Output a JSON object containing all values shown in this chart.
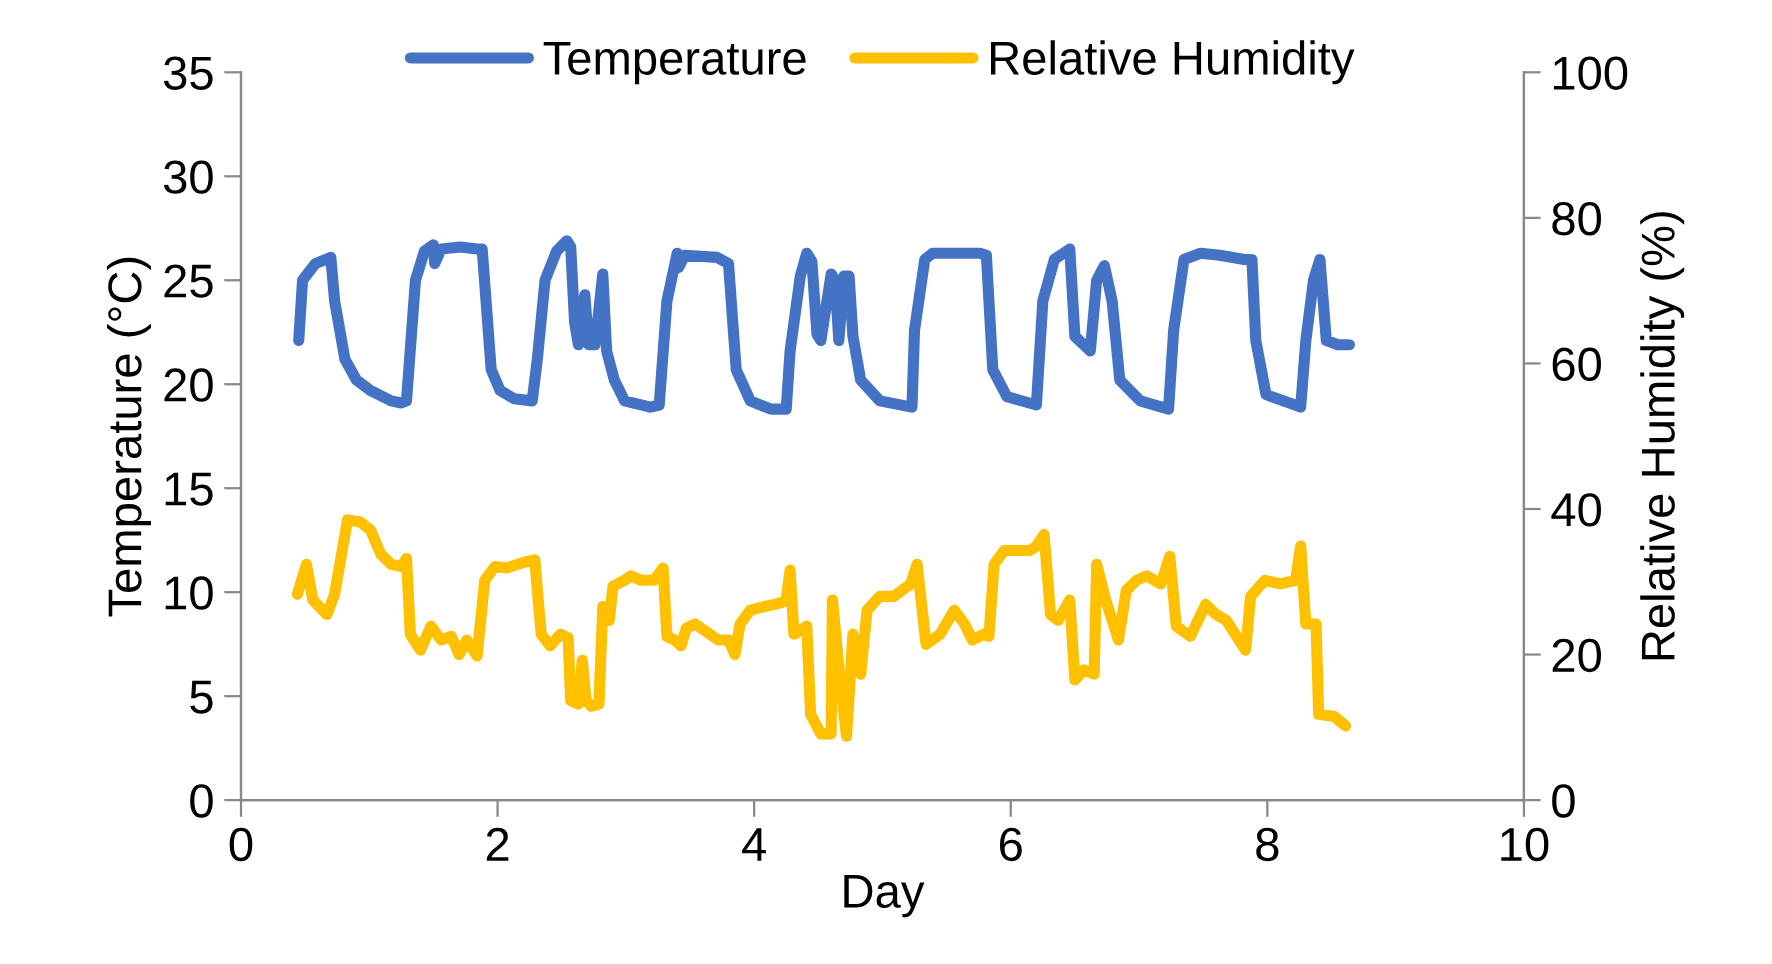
{
  "chart_data": {
    "type": "line",
    "xlabel": "Day",
    "ylabel": "Temperature (°C)",
    "y2label": "Relative Humidity (%)",
    "xlim": [
      0,
      10
    ],
    "xticks": [
      0,
      2,
      4,
      6,
      8,
      10
    ],
    "ylim": [
      0,
      35
    ],
    "yticks": [
      0,
      5,
      10,
      15,
      20,
      25,
      30,
      35
    ],
    "y2lim": [
      0,
      100
    ],
    "y2ticks": [
      0,
      20,
      40,
      60,
      80,
      100
    ],
    "grid": false,
    "legend": "top",
    "marker": "none",
    "line_style": "solid",
    "series": [
      {
        "name": "Temperature",
        "color": "#4472c4",
        "x": [
          0.45,
          0.48,
          0.58,
          0.7,
          0.73,
          0.81,
          0.9,
          1.01,
          1.17,
          1.25,
          1.29,
          1.36,
          1.43,
          1.5,
          1.51,
          1.56,
          1.71,
          1.84,
          1.88,
          1.95,
          2.02,
          2.13,
          2.27,
          2.31,
          2.37,
          2.46,
          2.54,
          2.57,
          2.6,
          2.63,
          2.68,
          2.71,
          2.76,
          2.82,
          2.85,
          2.91,
          2.99,
          3.19,
          3.26,
          3.32,
          3.4,
          3.41,
          3.46,
          3.71,
          3.8,
          3.86,
          3.97,
          4.13,
          4.25,
          4.28,
          4.36,
          4.41,
          4.45,
          4.49,
          4.52,
          4.6,
          4.63,
          4.66,
          4.7,
          4.74,
          4.77,
          4.83,
          4.98,
          5.23,
          5.25,
          5.33,
          5.39,
          5.61,
          5.76,
          5.81,
          5.86,
          5.97,
          6.2,
          6.25,
          6.34,
          6.46,
          6.5,
          6.62,
          6.67,
          6.73,
          6.79,
          6.85,
          7.01,
          7.23,
          7.27,
          7.35,
          7.48,
          7.63,
          7.82,
          7.88,
          7.91,
          7.99,
          8.26,
          8.3,
          8.36,
          8.41,
          8.46,
          8.55,
          8.64
        ],
        "values": [
          22.1,
          25,
          25.8,
          26.1,
          24,
          21.2,
          20.2,
          19.7,
          19.2,
          19.1,
          19.2,
          25,
          26.4,
          26.7,
          25.8,
          26.5,
          26.6,
          26.5,
          26.5,
          20.7,
          19.7,
          19.3,
          19.2,
          21.2,
          25,
          26.4,
          26.9,
          26.6,
          23,
          21.9,
          24.3,
          21.9,
          21.9,
          25.3,
          21.6,
          20.2,
          19.2,
          18.9,
          19,
          24,
          26.3,
          25.6,
          26.2,
          26.1,
          25.8,
          20.7,
          19.2,
          18.8,
          18.8,
          21.6,
          25.2,
          26.3,
          25.9,
          22.4,
          22.1,
          25.3,
          25,
          22.1,
          25.2,
          25.2,
          22.3,
          20.2,
          19.2,
          18.9,
          22.6,
          26,
          26.3,
          26.3,
          26.3,
          26.2,
          20.7,
          19.4,
          19,
          24,
          26,
          26.5,
          22.3,
          21.6,
          25,
          25.7,
          24,
          20.2,
          19.2,
          18.8,
          22.6,
          26,
          26.3,
          26.2,
          26,
          26,
          22.1,
          19.5,
          18.9,
          22.1,
          25,
          26,
          22.1,
          21.9,
          21.9
        ]
      },
      {
        "name": "Relative Humidity",
        "color": "#ffc000",
        "axis": "y2",
        "x": [
          0.44,
          0.51,
          0.56,
          0.67,
          0.73,
          0.83,
          0.93,
          1.01,
          1.09,
          1.17,
          1.25,
          1.29,
          1.32,
          1.4,
          1.48,
          1.56,
          1.64,
          1.7,
          1.76,
          1.84,
          1.9,
          1.98,
          2.07,
          2.21,
          2.29,
          2.34,
          2.41,
          2.49,
          2.55,
          2.57,
          2.63,
          2.66,
          2.69,
          2.73,
          2.79,
          2.82,
          2.87,
          2.9,
          2.99,
          3.04,
          3.12,
          3.22,
          3.29,
          3.32,
          3.38,
          3.43,
          3.47,
          3.54,
          3.63,
          3.72,
          3.8,
          3.85,
          3.89,
          3.97,
          4.08,
          4.16,
          4.22,
          4.25,
          4.28,
          4.31,
          4.41,
          4.44,
          4.52,
          4.6,
          4.61,
          4.67,
          4.72,
          4.77,
          4.83,
          4.88,
          4.98,
          5.09,
          5.22,
          5.27,
          5.34,
          5.45,
          5.56,
          5.64,
          5.7,
          5.79,
          5.83,
          5.87,
          5.95,
          6.04,
          6.15,
          6.2,
          6.26,
          6.31,
          6.37,
          6.46,
          6.5,
          6.57,
          6.65,
          6.67,
          6.74,
          6.84,
          6.9,
          6.98,
          7.06,
          7.17,
          7.24,
          7.29,
          7.4,
          7.52,
          7.6,
          7.68,
          7.76,
          7.83,
          7.87,
          7.98,
          8.1,
          8.22,
          8.26,
          8.3,
          8.38,
          8.4,
          8.52,
          8.61
        ],
        "values": [
          28.3,
          32.4,
          27.5,
          25.5,
          28.3,
          38.5,
          38.2,
          37.1,
          33.8,
          32.4,
          32.1,
          33.2,
          22.8,
          20.6,
          23.9,
          22,
          22.5,
          20,
          22,
          19.8,
          30.2,
          32.1,
          31.9,
          32.7,
          33,
          22.8,
          21.2,
          22.8,
          22.3,
          13.7,
          13.2,
          19.2,
          13.7,
          12.9,
          13.2,
          26.6,
          24.7,
          29.4,
          30.2,
          30.8,
          30.2,
          30.2,
          31.9,
          22.5,
          22,
          21.2,
          23.6,
          24.2,
          23.1,
          22,
          22,
          20,
          24.2,
          26.1,
          26.6,
          26.9,
          27.2,
          27.5,
          31.6,
          22.8,
          23.9,
          11.8,
          9.1,
          9.1,
          27.5,
          16.5,
          8.8,
          22.8,
          17.3,
          26.1,
          28,
          28,
          29.7,
          32.4,
          21.4,
          22.8,
          26.1,
          24.2,
          22,
          22.8,
          22.5,
          32.4,
          34.3,
          34.3,
          34.3,
          34.9,
          36.5,
          25.5,
          24.7,
          27.5,
          16.5,
          17.9,
          17.3,
          32.4,
          27.5,
          22,
          28.8,
          30.2,
          30.8,
          29.7,
          33.5,
          23.9,
          22.5,
          26.9,
          25.5,
          24.7,
          22.5,
          20.6,
          28,
          30.2,
          29.7,
          30.2,
          34.9,
          24.2,
          24.2,
          11.8,
          11.5,
          10.2
        ]
      }
    ]
  }
}
